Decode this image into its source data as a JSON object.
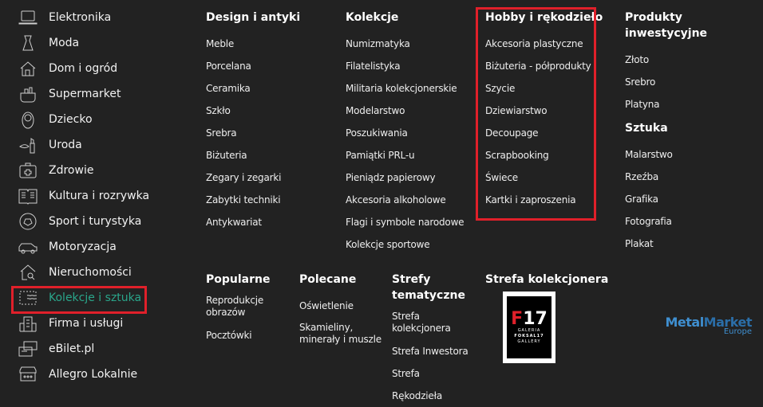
{
  "sidebar": {
    "items": [
      {
        "label": "Elektronika",
        "icon": "laptop-icon"
      },
      {
        "label": "Moda",
        "icon": "dress-icon"
      },
      {
        "label": "Dom i ogród",
        "icon": "house-icon"
      },
      {
        "label": "Supermarket",
        "icon": "basket-icon"
      },
      {
        "label": "Dziecko",
        "icon": "baby-icon"
      },
      {
        "label": "Uroda",
        "icon": "lipstick-icon"
      },
      {
        "label": "Zdrowie",
        "icon": "first-aid-icon"
      },
      {
        "label": "Kultura i rozrywka",
        "icon": "book-icon"
      },
      {
        "label": "Sport i turystyka",
        "icon": "ball-icon"
      },
      {
        "label": "Motoryzacja",
        "icon": "car-icon"
      },
      {
        "label": "Nieruchomości",
        "icon": "house-search-icon"
      },
      {
        "label": "Kolekcje i sztuka",
        "icon": "stamp-icon",
        "active": true
      },
      {
        "label": "Firma i usługi",
        "icon": "building-icon"
      },
      {
        "label": "eBilet.pl",
        "icon": "ticket-icon"
      },
      {
        "label": "Allegro Lokalnie",
        "icon": "shop-icon"
      }
    ]
  },
  "columns": [
    {
      "title": "Design i antyki",
      "items": [
        "Meble",
        "Porcelana",
        "Ceramika",
        "Szkło",
        "Srebra",
        "Biżuteria",
        "Zegary i zegarki",
        "Zabytki techniki",
        "Antykwariat"
      ]
    },
    {
      "title": "Kolekcje",
      "items": [
        "Numizmatyka",
        "Filatelistyka",
        "Militaria kolekcjonerskie",
        "Modelarstwo",
        "Poszukiwania",
        "Pamiątki PRL-u",
        "Pieniądz papierowy",
        "Akcesoria alkoholowe",
        "Flagi i symbole narodowe",
        "Kolekcje sportowe"
      ]
    },
    {
      "title": "Hobby i rękodzieło",
      "items": [
        "Akcesoria plastyczne",
        "Biżuteria - półprodukty",
        "Szycie",
        "Dziewiarstwo",
        "Decoupage",
        "Scrapbooking",
        "Świece",
        "Kartki i zaproszenia"
      ]
    },
    {
      "title": "Produkty inwestycyjne",
      "items": [
        "Złoto",
        "Srebro",
        "Platyna"
      ],
      "title2": "Sztuka",
      "items2": [
        "Malarstwo",
        "Rzeźba",
        "Grafika",
        "Fotografia",
        "Plakat"
      ]
    }
  ],
  "lower": [
    {
      "title": "Popularne",
      "items": [
        "Reprodukcje obrazów",
        "Pocztówki"
      ]
    },
    {
      "title": "Polecane",
      "items": [
        "Oświetlenie",
        "Skamieliny, minerały i muszle"
      ]
    },
    {
      "title": "Strefy tematyczne",
      "items": [
        "Strefa kolekcjonera",
        "Strefa Inwestora",
        "Strefa Rękodzieła"
      ]
    },
    {
      "title": "Strefa kolekcjonera"
    }
  ],
  "logos": {
    "galeria": {
      "mark_red": "F",
      "mark_white": "17",
      "line1": "GALERIA",
      "line2": "FOKSAL17",
      "line3": "GALLERY"
    },
    "metal": {
      "part1": "Metal",
      "part2": "Market",
      "sub": "Europe"
    }
  },
  "colors": {
    "background": "#222222",
    "active": "#2aa58a",
    "highlight": "#e0202a"
  }
}
